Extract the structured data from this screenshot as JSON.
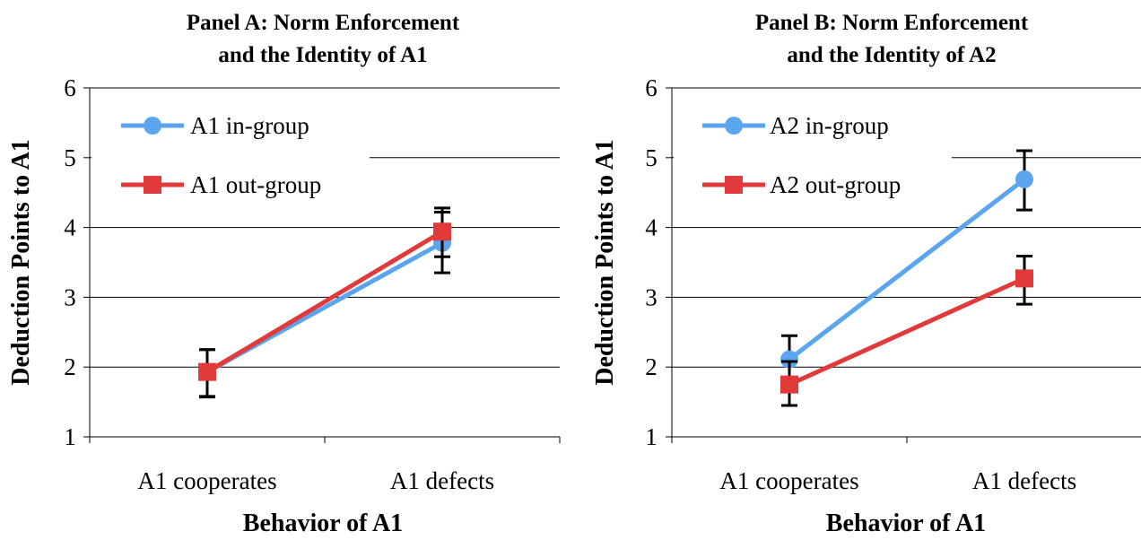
{
  "chart_data": [
    {
      "type": "line",
      "title_lines": [
        "Panel A: Norm Enforcement",
        "and the Identity of A1"
      ],
      "xlabel": "Behavior of A1",
      "ylabel": "Deduction Points to A1",
      "categories": [
        "A1 cooperates",
        "A1 defects"
      ],
      "ylim": [
        1,
        6
      ],
      "yticks": [
        "1",
        "2",
        "3",
        "4",
        "5",
        "6"
      ],
      "grid": "horizontal",
      "legend_position": "top-left",
      "series": [
        {
          "name": "A1 in-group",
          "color": "#5aa5ee",
          "marker": "circle",
          "values": [
            1.93,
            3.78
          ],
          "err_low": [
            1.57,
            3.35
          ],
          "err_high": [
            2.25,
            4.22
          ]
        },
        {
          "name": "A1 out-group",
          "color": "#e03a3a",
          "marker": "square",
          "values": [
            1.93,
            3.94
          ],
          "err_low": [
            1.58,
            3.58
          ],
          "err_high": [
            2.25,
            4.28
          ]
        }
      ]
    },
    {
      "type": "line",
      "title_lines": [
        "Panel B: Norm Enforcement",
        "and the Identity of A2"
      ],
      "xlabel": "Behavior of A1",
      "ylabel": "Deduction Points to A1",
      "categories": [
        "A1 cooperates",
        "A1 defects"
      ],
      "ylim": [
        1,
        6
      ],
      "yticks": [
        "1",
        "2",
        "3",
        "4",
        "5",
        "6"
      ],
      "grid": "horizontal",
      "legend_position": "top-left",
      "series": [
        {
          "name": "A2 in-group",
          "color": "#5aa5ee",
          "marker": "circle",
          "values": [
            2.11,
            4.69
          ],
          "err_low": [
            1.78,
            4.25
          ],
          "err_high": [
            2.45,
            5.1
          ]
        },
        {
          "name": "A2 out-group",
          "color": "#e03a3a",
          "marker": "square",
          "values": [
            1.75,
            3.27
          ],
          "err_low": [
            1.45,
            2.9
          ],
          "err_high": [
            2.08,
            3.59
          ]
        }
      ]
    }
  ]
}
